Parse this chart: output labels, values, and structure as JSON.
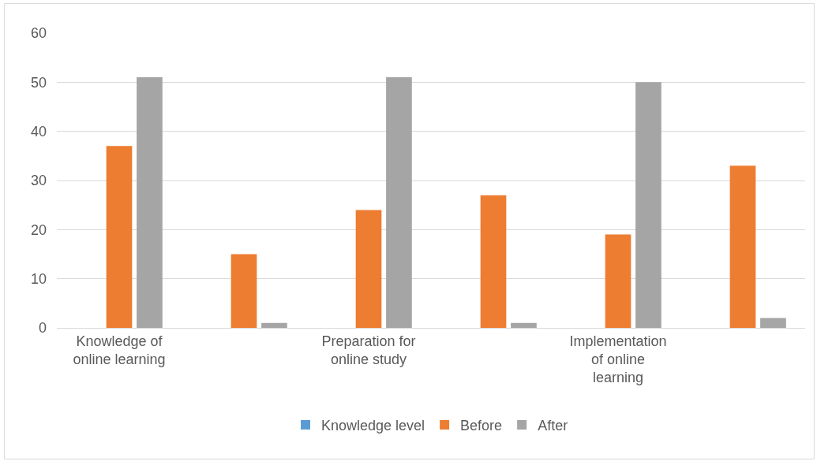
{
  "chart_data": {
    "type": "bar",
    "categories": [
      "Knowledge of online learning",
      null,
      "Preparation for online study",
      null,
      "Implementation of online learning",
      null
    ],
    "series": [
      {
        "name": "Knowledge level",
        "color": "#5b9bd5",
        "values": [
          null,
          null,
          null,
          null,
          null,
          null
        ]
      },
      {
        "name": "Before",
        "color": "#ed7d31",
        "values": [
          37,
          15,
          24,
          27,
          19,
          33
        ]
      },
      {
        "name": "After",
        "color": "#a5a5a5",
        "values": [
          51,
          1,
          51,
          1,
          50,
          2
        ]
      }
    ],
    "ylim": [
      0,
      60
    ],
    "yticks": [
      0,
      10,
      20,
      30,
      40,
      50,
      60
    ],
    "grid": "y",
    "legend": "bottom"
  }
}
